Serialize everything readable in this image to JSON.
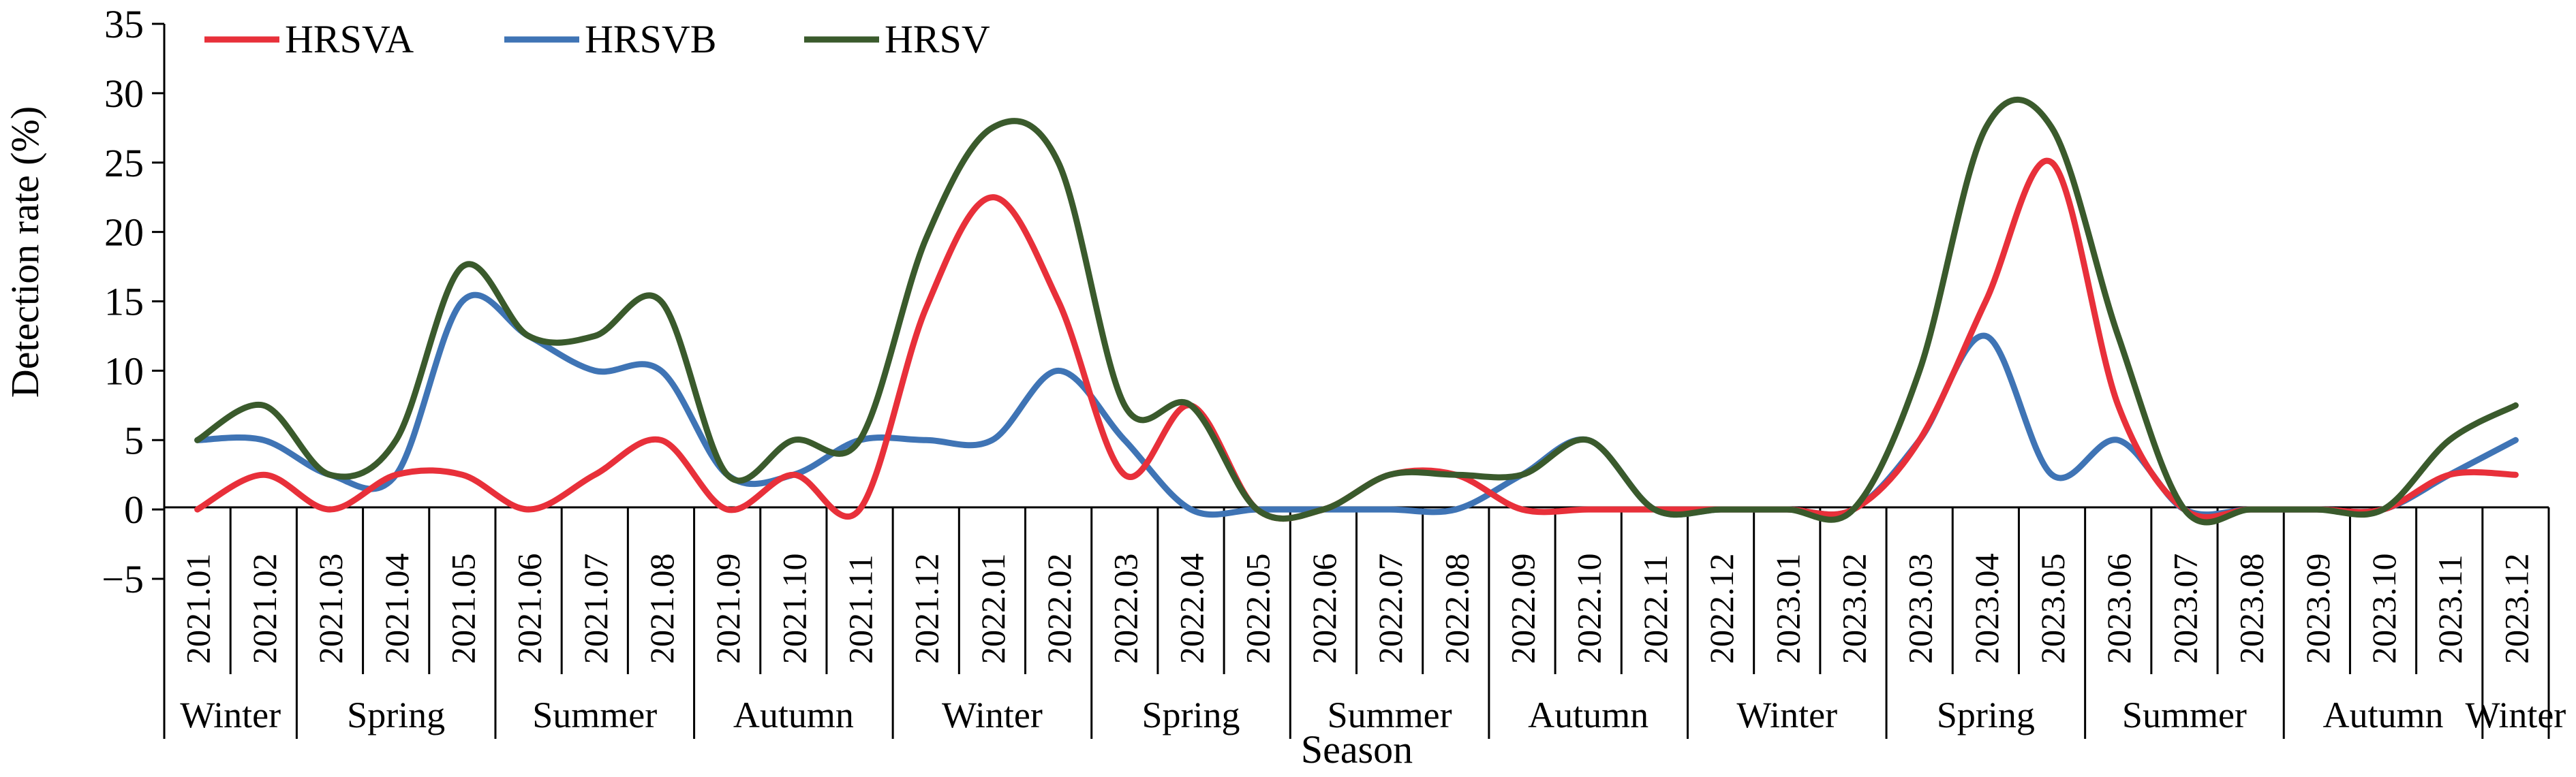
{
  "chart_data": {
    "type": "line",
    "title": "",
    "xlabel": "Season",
    "ylabel": "Detection rate (%)",
    "ylim": [
      -5,
      35
    ],
    "yticks": [
      "35",
      "30",
      "25",
      "20",
      "15",
      "10",
      "5",
      "0",
      "−5"
    ],
    "grid": false,
    "legend_position": "top-left",
    "categories": [
      "2021.01",
      "2021.02",
      "2021.03",
      "2021.04",
      "2021.05",
      "2021.06",
      "2021.07",
      "2021.08",
      "2021.09",
      "2021.10",
      "2021.11",
      "2021.12",
      "2022.01",
      "2022.02",
      "2022.03",
      "2022.04",
      "2022.05",
      "2022.06",
      "2022.07",
      "2022.08",
      "2022.09",
      "2022.10",
      "2022.11",
      "2022.12",
      "2023.01",
      "2023.02",
      "2023.03",
      "2023.04",
      "2023.05",
      "2023.06",
      "2023.07",
      "2023.08",
      "2023.09",
      "2023.10",
      "2023.11",
      "2023.12"
    ],
    "seasons": [
      {
        "label": "Winter",
        "start": 0,
        "end": 1
      },
      {
        "label": "Spring",
        "start": 2,
        "end": 4
      },
      {
        "label": "Summer",
        "start": 5,
        "end": 7
      },
      {
        "label": "Autumn",
        "start": 8,
        "end": 10
      },
      {
        "label": "Winter",
        "start": 11,
        "end": 13
      },
      {
        "label": "Spring",
        "start": 14,
        "end": 16
      },
      {
        "label": "Summer",
        "start": 17,
        "end": 19
      },
      {
        "label": "Autumn",
        "start": 20,
        "end": 22
      },
      {
        "label": "Winter",
        "start": 23,
        "end": 25
      },
      {
        "label": "Spring",
        "start": 26,
        "end": 28
      },
      {
        "label": "Summer",
        "start": 29,
        "end": 31
      },
      {
        "label": "Autumn",
        "start": 32,
        "end": 34
      },
      {
        "label": "Winter",
        "start": 35,
        "end": 35
      }
    ],
    "series": [
      {
        "name": "HRSVA",
        "color": "#e8303a",
        "values": [
          0,
          2.5,
          0,
          2.5,
          2.5,
          0,
          2.5,
          5,
          0,
          2.5,
          0,
          14.5,
          22.5,
          15,
          2.5,
          7.5,
          0,
          0,
          2.5,
          2.5,
          0,
          0,
          0,
          0,
          0,
          0,
          5,
          15,
          25,
          7.5,
          0,
          0,
          0,
          0,
          2.5,
          2.5
        ]
      },
      {
        "name": "HRSVB",
        "color": "#3f74b5",
        "values": [
          5,
          5,
          2.5,
          2.5,
          15,
          12.5,
          10,
          10,
          2.5,
          2.5,
          5,
          5,
          5,
          10,
          5,
          0,
          0,
          0,
          0,
          0,
          2.5,
          5,
          0,
          0,
          0,
          0,
          5,
          12.5,
          2.5,
          5,
          0,
          0,
          0,
          0,
          2.5,
          5
        ]
      },
      {
        "name": "HRSV",
        "color": "#3a5a2c",
        "values": [
          5,
          7.5,
          2.5,
          5,
          17.5,
          12.5,
          12.5,
          15,
          2.5,
          5,
          5,
          19.5,
          27.5,
          25,
          7.5,
          7.5,
          0,
          0,
          2.5,
          2.5,
          2.5,
          5,
          0,
          0,
          0,
          0,
          10,
          27.5,
          27.5,
          12.5,
          0,
          0,
          0,
          0,
          5,
          7.5
        ]
      }
    ]
  }
}
